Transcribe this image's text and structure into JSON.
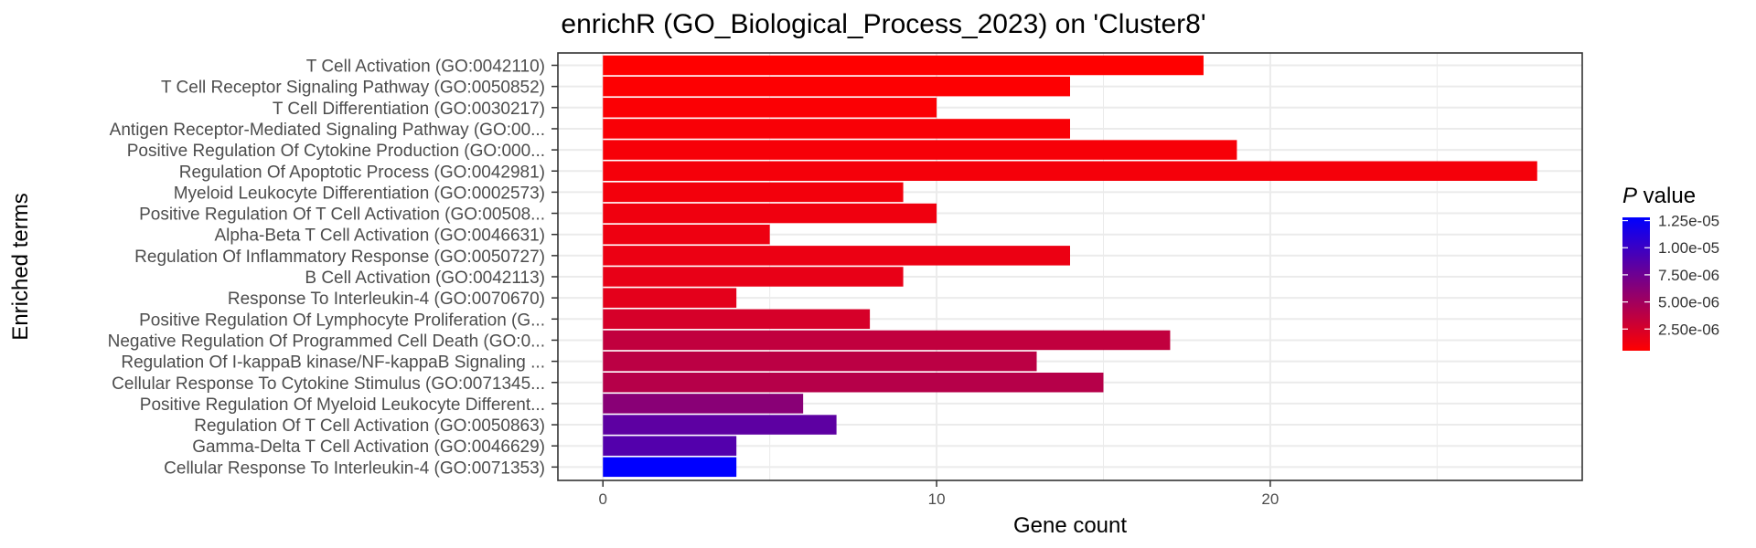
{
  "chart_data": {
    "type": "bar",
    "orientation": "horizontal",
    "title": "enrichR (GO_Biological_Process_2023) on 'Cluster8'",
    "xlabel": "Gene count",
    "ylabel": "Enriched terms",
    "xlim": [
      -1.35,
      29.35
    ],
    "xticks": [
      0,
      10,
      20
    ],
    "grid": true,
    "categories": [
      "T Cell Activation (GO:0042110)",
      "T Cell Receptor Signaling Pathway (GO:0050852)",
      "T Cell Differentiation (GO:0030217)",
      "Antigen Receptor-Mediated Signaling Pathway (GO:00...",
      "Positive Regulation Of Cytokine Production (GO:000...",
      "Regulation Of Apoptotic Process (GO:0042981)",
      "Myeloid Leukocyte Differentiation (GO:0002573)",
      "Positive Regulation Of T Cell Activation (GO:00508...",
      "Alpha-Beta T Cell Activation (GO:0046631)",
      "Regulation Of Inflammatory Response (GO:0050727)",
      "B Cell Activation (GO:0042113)",
      "Response To Interleukin-4 (GO:0070670)",
      "Positive Regulation Of Lymphocyte Proliferation (G...",
      "Negative Regulation Of Programmed Cell Death (GO:0...",
      "Regulation Of I-kappaB kinase/NF-kappaB Signaling ...",
      "Cellular Response To Cytokine Stimulus (GO:0071345...",
      "Positive Regulation Of Myeloid Leukocyte Different...",
      "Regulation Of T Cell Activation (GO:0050863)",
      "Gamma-Delta T Cell Activation (GO:0046629)",
      "Cellular Response To Interleukin-4 (GO:0071353)"
    ],
    "values": [
      18,
      14,
      10,
      14,
      19,
      28,
      9,
      10,
      5,
      14,
      9,
      4,
      8,
      17,
      13,
      15,
      6,
      7,
      4,
      4
    ],
    "p_values": [
      5e-07,
      6e-07,
      7e-07,
      8e-07,
      9e-07,
      1e-06,
      1.1e-06,
      1.2e-06,
      1.3e-06,
      1.4e-06,
      1.6e-06,
      1.8e-06,
      2.5e-06,
      3.5e-06,
      3.8e-06,
      4e-06,
      6.2e-06,
      8.3e-06,
      8.8e-06,
      1.28e-05
    ],
    "legend": {
      "title_italic": "P",
      "title_rest": " value",
      "placement": "right",
      "range": [
        5e-07,
        1.28e-05
      ],
      "ticks": [
        {
          "value": 1.25e-05,
          "label": "1.25e-05"
        },
        {
          "value": 1e-05,
          "label": "1.00e-05"
        },
        {
          "value": 7.5e-06,
          "label": "7.50e-06"
        },
        {
          "value": 5e-06,
          "label": "5.00e-06"
        },
        {
          "value": 2.5e-06,
          "label": "2.50e-06"
        }
      ],
      "color_low": "#ff0000",
      "color_high": "#0000ff"
    }
  }
}
